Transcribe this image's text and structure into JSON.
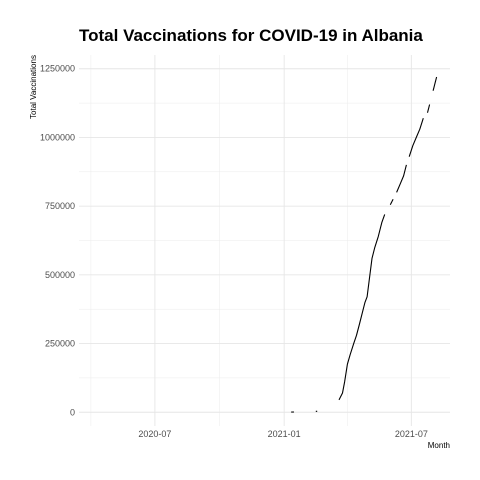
{
  "chart_data": {
    "type": "line",
    "title": "Total Vaccinations for COVID-19 in Albania",
    "xlabel": "Month",
    "ylabel": "Total Vaccinations",
    "xlim": [
      "2020-03-15",
      "2021-08-25"
    ],
    "ylim": [
      -50000,
      1300000
    ],
    "x_ticks": [
      {
        "date": "2020-07-01",
        "label": "2020-07"
      },
      {
        "date": "2021-01-01",
        "label": "2021-01"
      },
      {
        "date": "2021-07-01",
        "label": "2021-07"
      }
    ],
    "x_minor_ticks": [
      "2020-04-01",
      "2020-10-01",
      "2021-04-01"
    ],
    "y_ticks": [
      {
        "value": 0,
        "label": "0"
      },
      {
        "value": 250000,
        "label": "250000"
      },
      {
        "value": 500000,
        "label": "500000"
      },
      {
        "value": 750000,
        "label": "750000"
      },
      {
        "value": 1000000,
        "label": "1000000"
      },
      {
        "value": 1250000,
        "label": "1250000"
      }
    ],
    "y_minor_ticks": [
      125000,
      375000,
      625000,
      875000,
      1125000
    ],
    "grid": true,
    "line_color": "#000000",
    "segments": [
      [
        [
          "2021-01-11",
          500
        ],
        [
          "2021-01-15",
          1000
        ]
      ],
      [
        [
          "2021-02-15",
          3000
        ],
        [
          "2021-02-17",
          4000
        ]
      ],
      [
        [
          "2021-03-20",
          45000
        ],
        [
          "2021-03-25",
          70000
        ],
        [
          "2021-03-28",
          110000
        ],
        [
          "2021-04-01",
          175000
        ],
        [
          "2021-04-05",
          210000
        ],
        [
          "2021-04-10",
          250000
        ],
        [
          "2021-04-14",
          280000
        ],
        [
          "2021-04-18",
          320000
        ],
        [
          "2021-04-22",
          360000
        ],
        [
          "2021-04-26",
          400000
        ],
        [
          "2021-04-29",
          420000
        ],
        [
          "2021-05-02",
          480000
        ],
        [
          "2021-05-06",
          560000
        ],
        [
          "2021-05-10",
          600000
        ],
        [
          "2021-05-15",
          640000
        ],
        [
          "2021-05-20",
          690000
        ],
        [
          "2021-05-24",
          720000
        ]
      ],
      [
        [
          "2021-06-01",
          755000
        ],
        [
          "2021-06-05",
          775000
        ]
      ],
      [
        [
          "2021-06-10",
          800000
        ],
        [
          "2021-06-15",
          830000
        ],
        [
          "2021-06-20",
          860000
        ],
        [
          "2021-06-24",
          900000
        ]
      ],
      [
        [
          "2021-06-28",
          930000
        ],
        [
          "2021-07-03",
          970000
        ],
        [
          "2021-07-08",
          1000000
        ],
        [
          "2021-07-13",
          1030000
        ],
        [
          "2021-07-18",
          1070000
        ]
      ],
      [
        [
          "2021-07-24",
          1090000
        ],
        [
          "2021-07-27",
          1120000
        ]
      ],
      [
        [
          "2021-08-01",
          1170000
        ],
        [
          "2021-08-06",
          1220000
        ]
      ]
    ]
  }
}
